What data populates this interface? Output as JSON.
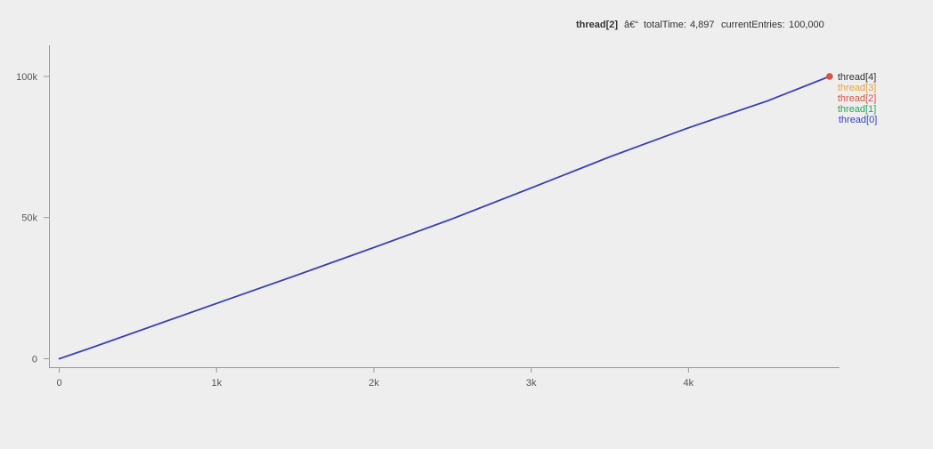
{
  "tooltip": {
    "series_name": "thread[2]",
    "separator": "â€“",
    "fields": [
      {
        "label": "totalTime:",
        "value": "4,897"
      },
      {
        "label": "currentEntries:",
        "value": "100,000"
      }
    ],
    "highlight_color": "#e0523e"
  },
  "chart_data": {
    "type": "line",
    "title": "",
    "xlabel": "",
    "ylabel": "",
    "xlim": [
      -60,
      4960
    ],
    "ylim": [
      -3000,
      111000
    ],
    "x_ticks": [
      0,
      1000,
      2000,
      3000,
      4000
    ],
    "x_tick_labels": [
      "0",
      "1k",
      "2k",
      "3k",
      "4k"
    ],
    "y_ticks": [
      0,
      50000,
      100000
    ],
    "y_tick_labels": [
      "0",
      "50k",
      "100k"
    ],
    "grid": false,
    "legend_position": "right-end",
    "series": [
      {
        "name": "thread[4]",
        "color": "#333333",
        "x": [
          0,
          200,
          600,
          1000,
          1500,
          2000,
          2500,
          3000,
          3500,
          4000,
          4500,
          4897
        ],
        "y": [
          0,
          3800,
          11700,
          19600,
          29400,
          39400,
          49600,
          60500,
          71500,
          81800,
          91300,
          100000
        ]
      },
      {
        "name": "thread[3]",
        "color": "#f0a030",
        "x": [
          0,
          200,
          600,
          1000,
          1500,
          2000,
          2500,
          3000,
          3500,
          4000,
          4500,
          4897
        ],
        "y": [
          0,
          3800,
          11700,
          19600,
          29400,
          39400,
          49600,
          60500,
          71500,
          81800,
          91300,
          100000
        ]
      },
      {
        "name": "thread[2]",
        "color": "#e0523e",
        "x": [
          0,
          200,
          600,
          1000,
          1500,
          2000,
          2500,
          3000,
          3500,
          4000,
          4500,
          4897
        ],
        "y": [
          0,
          3800,
          11700,
          19600,
          29400,
          39400,
          49600,
          60500,
          71500,
          81800,
          91300,
          100000
        ]
      },
      {
        "name": "thread[1]",
        "color": "#2aa55a",
        "x": [
          0,
          200,
          600,
          1000,
          1500,
          2000,
          2500,
          3000,
          3500,
          4000,
          4500,
          4897
        ],
        "y": [
          0,
          3800,
          11700,
          19600,
          29400,
          39400,
          49600,
          60500,
          71500,
          81800,
          91300,
          100000
        ]
      },
      {
        "name": "thread[0]",
        "color": "#3b3fc8",
        "x": [
          0,
          200,
          600,
          1000,
          1500,
          2000,
          2500,
          3000,
          3500,
          4000,
          4500,
          4897
        ],
        "y": [
          0,
          3800,
          11700,
          19600,
          29400,
          39400,
          49600,
          60500,
          71500,
          81800,
          91300,
          100000
        ]
      }
    ],
    "highlight": {
      "series": "thread[2]",
      "x": 4897,
      "y": 100000
    }
  }
}
